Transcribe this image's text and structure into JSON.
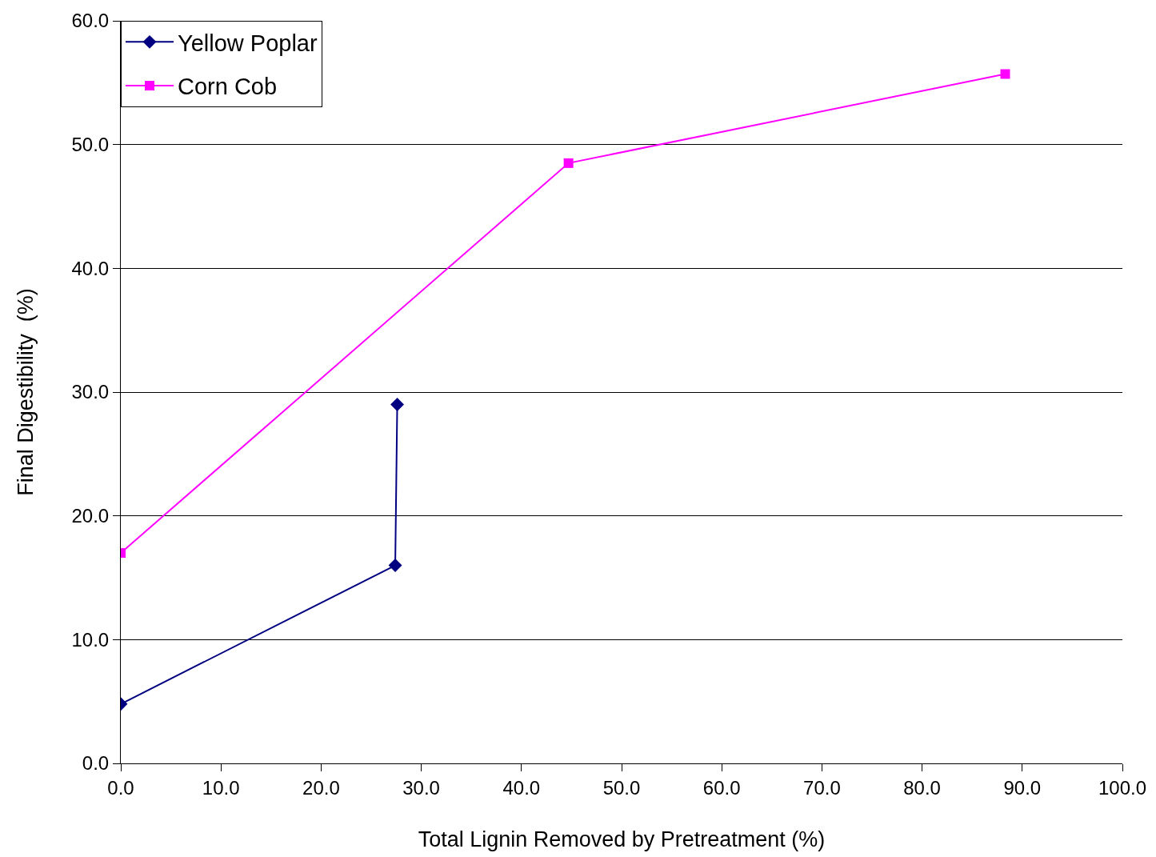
{
  "chart_data": {
    "type": "line",
    "xlabel": "Total Lignin Removed by Pretreatment (%)",
    "ylabel": "Final Digestibility  (%)",
    "series": [
      {
        "name": "Yellow Poplar",
        "color": "#000080",
        "marker": "diamond",
        "x": [
          0.0,
          27.4,
          27.6
        ],
        "values": [
          4.8,
          16.0,
          29.0
        ]
      },
      {
        "name": "Corn Cob",
        "color": "#ff00ff",
        "marker": "square",
        "x": [
          0.0,
          44.7,
          88.3
        ],
        "values": [
          17.0,
          48.5,
          55.7
        ]
      }
    ],
    "xlim": [
      0,
      100
    ],
    "xticks": [
      {
        "value": 0,
        "label": "0.0"
      },
      {
        "value": 10,
        "label": "10.0"
      },
      {
        "value": 20,
        "label": "20.0"
      },
      {
        "value": 30,
        "label": "30.0"
      },
      {
        "value": 40,
        "label": "40.0"
      },
      {
        "value": 50,
        "label": "50.0"
      },
      {
        "value": 60,
        "label": "60.0"
      },
      {
        "value": 70,
        "label": "70.0"
      },
      {
        "value": 80,
        "label": "80.0"
      },
      {
        "value": 90,
        "label": "90.0"
      },
      {
        "value": 100,
        "label": "100.0"
      }
    ],
    "ylim": [
      0,
      60
    ],
    "yticks": [
      {
        "value": 0,
        "label": "0.0"
      },
      {
        "value": 10,
        "label": "10.0"
      },
      {
        "value": 20,
        "label": "20.0"
      },
      {
        "value": 30,
        "label": "30.0"
      },
      {
        "value": 40,
        "label": "40.0"
      },
      {
        "value": 50,
        "label": "50.0"
      },
      {
        "value": 60,
        "label": "60.0"
      }
    ],
    "grid": "y",
    "legend": "top left",
    "line_style": "solid"
  }
}
